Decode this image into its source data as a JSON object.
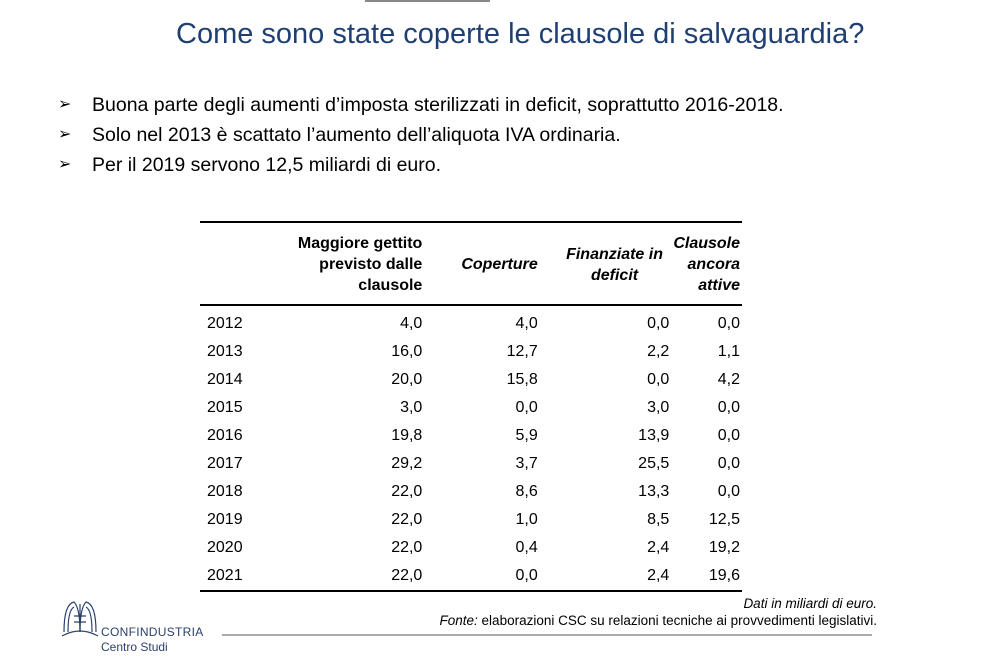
{
  "title": "Come sono state coperte le clausole di salvaguardia?",
  "bullets": [
    "Buona parte degli aumenti d’imposta sterilizzati in deficit, soprattutto 2016-2018.",
    "Solo nel 2013 è scattato l’aumento dell’aliquota IVA ordinaria.",
    "Per il 2019 servono 12,5 miliardi di euro."
  ],
  "table": {
    "headers": [
      "",
      "Maggiore gettito previsto dalle clausole",
      "Coperture",
      "Finanziate in deficit",
      "Clausole ancora attive"
    ],
    "rows": [
      [
        "2012",
        "4,0",
        "4,0",
        "0,0",
        "0,0"
      ],
      [
        "2013",
        "16,0",
        "12,7",
        "2,2",
        "1,1"
      ],
      [
        "2014",
        "20,0",
        "15,8",
        "0,0",
        "4,2"
      ],
      [
        "2015",
        "3,0",
        "0,0",
        "3,0",
        "0,0"
      ],
      [
        "2016",
        "19,8",
        "5,9",
        "13,9",
        "0,0"
      ],
      [
        "2017",
        "29,2",
        "3,7",
        "25,5",
        "0,0"
      ],
      [
        "2018",
        "22,0",
        "8,6",
        "13,3",
        "0,0"
      ],
      [
        "2019",
        "22,0",
        "1,0",
        "8,5",
        "12,5"
      ],
      [
        "2020",
        "22,0",
        "0,4",
        "2,4",
        "19,2"
      ],
      [
        "2021",
        "22,0",
        "0,0",
        "2,4",
        "19,6"
      ]
    ]
  },
  "notes": {
    "unit": "Dati in miliardi di euro.",
    "source_label": "Fonte:",
    "source_text": " elaborazioni CSC su relazioni tecniche ai provvedimenti legislativi."
  },
  "logo": {
    "name": "CONFINDUSTRIA",
    "sub": "Centro Studi",
    "color": "#2b3f6b"
  },
  "colors": {
    "title": "#1f3f73"
  }
}
